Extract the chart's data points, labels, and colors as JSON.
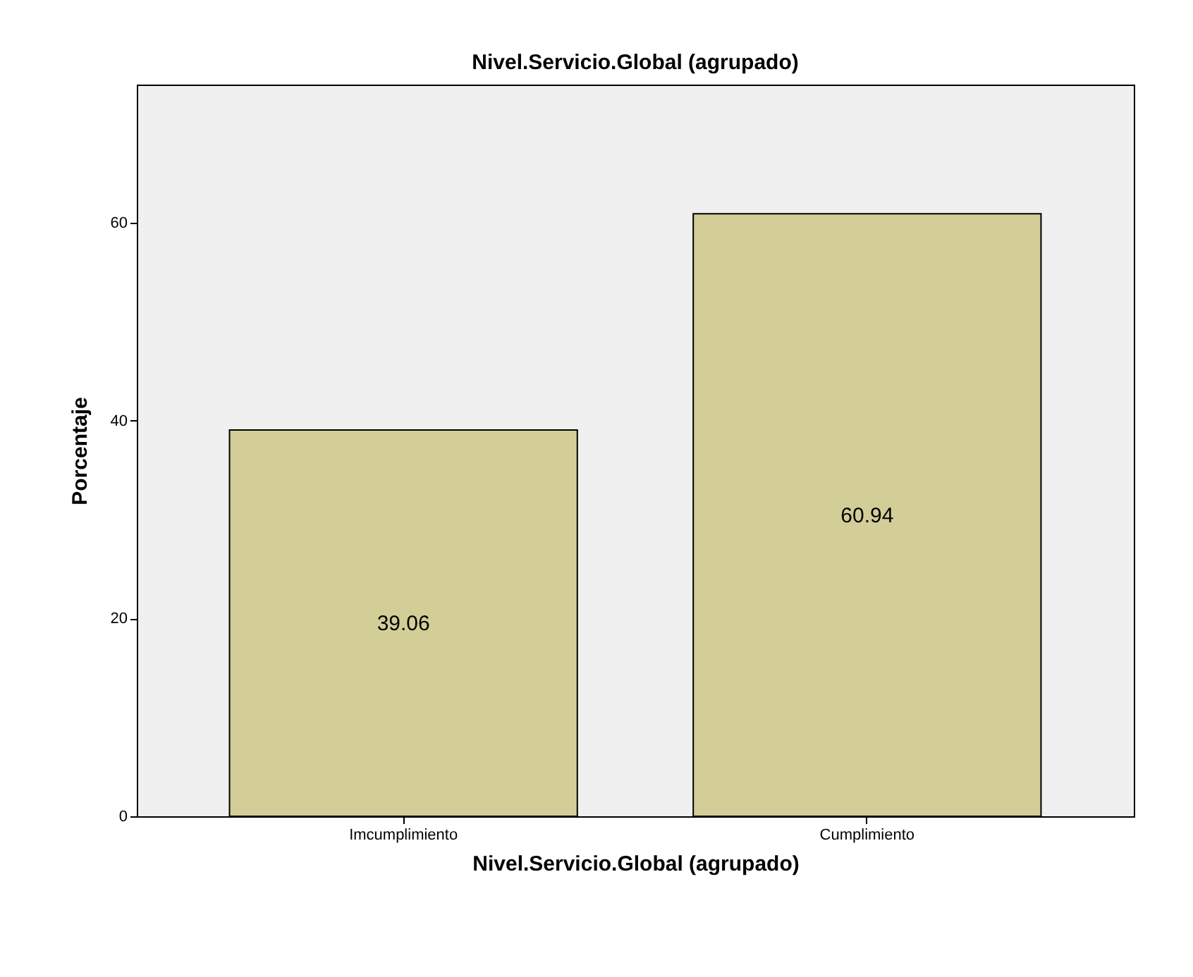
{
  "chart_data": {
    "type": "bar",
    "title": "Nivel.Servicio.Global (agrupado)",
    "xlabel": "Nivel.Servicio.Global (agrupado)",
    "ylabel": "Porcentaje",
    "categories": [
      "Imcumplimiento",
      "Cumplimiento"
    ],
    "values": [
      39.06,
      60.94
    ],
    "color": "#d3ce98",
    "ylim": [
      0,
      74
    ],
    "yticks": [
      0,
      20,
      40,
      60
    ],
    "grid": false,
    "data_labels": true
  }
}
